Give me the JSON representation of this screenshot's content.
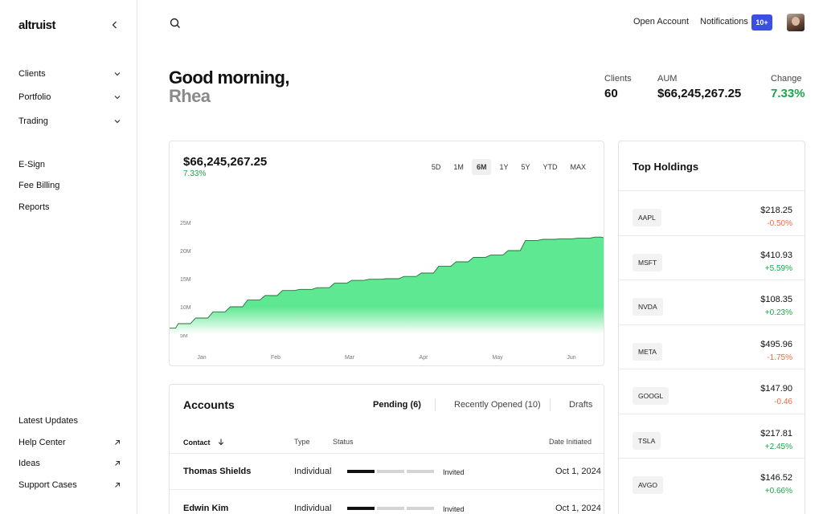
{
  "app": {
    "logo": "altruist"
  },
  "sidebar": {
    "primary": [
      {
        "label": "Clients"
      },
      {
        "label": "Portfolio"
      },
      {
        "label": "Trading"
      }
    ],
    "secondary": [
      {
        "label": "E-Sign"
      },
      {
        "label": "Fee Billing"
      },
      {
        "label": "Reports"
      }
    ],
    "footer": [
      {
        "label": "Latest Updates"
      },
      {
        "label": "Help Center"
      },
      {
        "label": "Ideas"
      },
      {
        "label": "Support Cases"
      }
    ]
  },
  "topbar": {
    "open_account": "Open Account",
    "notifications": "Notifications",
    "notifications_badge": "10+"
  },
  "greeting": {
    "line1": "Good morning,",
    "line2": "Rhea"
  },
  "stats": {
    "clients_label": "Clients",
    "clients_value": "60",
    "aum_label": "AUM",
    "aum_value": "$66,245,267.25",
    "change_label": "Change",
    "change_value": "7.33%"
  },
  "chart_card": {
    "value": "$66,245,267.25",
    "change": "7.33%",
    "ranges": [
      "5D",
      "1M",
      "6M",
      "1Y",
      "5Y",
      "YTD",
      "MAX"
    ],
    "active_range": "6M"
  },
  "chart_data": {
    "type": "area",
    "title": "",
    "xlabel": "",
    "ylabel": "",
    "x_ticks": [
      "Jan",
      "Feb",
      "Mar",
      "Apr",
      "May",
      "Jun"
    ],
    "y_ticks": [
      "5M",
      "10M",
      "15M",
      "20M",
      "25M"
    ],
    "ylim": [
      3,
      28
    ],
    "xlim": [
      0,
      1
    ],
    "x": [
      0.0,
      0.02,
      0.06,
      0.1,
      0.14,
      0.18,
      0.22,
      0.26,
      0.3,
      0.34,
      0.38,
      0.42,
      0.46,
      0.5,
      0.54,
      0.58,
      0.62,
      0.66,
      0.7,
      0.74,
      0.78,
      0.82,
      0.86,
      0.9,
      0.94,
      0.98,
      1.0
    ],
    "values": [
      6.2,
      7.0,
      8.0,
      9.1,
      10.0,
      11.2,
      12.0,
      12.9,
      13.1,
      13.4,
      14.2,
      14.7,
      14.9,
      15.0,
      15.4,
      16.0,
      17.2,
      18.0,
      18.8,
      19.2,
      20.0,
      21.8,
      22.0,
      22.1,
      22.2,
      22.4,
      22.3
    ],
    "color": "#5fe892",
    "grid": false,
    "legend": "none"
  },
  "accounts": {
    "title": "Accounts",
    "tabs": [
      "Pending (6)",
      "Recently Opened (10)",
      "Drafts"
    ],
    "columns": {
      "contact": "Contact",
      "type": "Type",
      "status": "Status",
      "date": "Date Initiated"
    },
    "rows": [
      {
        "name": "Thomas Shields",
        "type": "Individual",
        "status": "Invited",
        "progress": 1,
        "date": "Oct 1, 2024"
      },
      {
        "name": "Edwin Kim",
        "type": "Individual",
        "status": "Invited",
        "progress": 1,
        "date": "Oct 1, 2024"
      }
    ]
  },
  "holdings": {
    "title": "Top Holdings",
    "items": [
      {
        "ticker": "AAPL",
        "price": "$218.25",
        "change": "-0.50%",
        "dir": "down"
      },
      {
        "ticker": "MSFT",
        "price": "$410.93",
        "change": "+5.59%",
        "dir": "up"
      },
      {
        "ticker": "NVDA",
        "price": "$108.35",
        "change": "+0.23%",
        "dir": "up"
      },
      {
        "ticker": "META",
        "price": "$495.96",
        "change": "-1.75%",
        "dir": "down"
      },
      {
        "ticker": "GOOGL",
        "price": "$147.90",
        "change": "-0.46",
        "dir": "down"
      },
      {
        "ticker": "TSLA",
        "price": "$217.81",
        "change": "+2.45%",
        "dir": "up"
      },
      {
        "ticker": "AVGO",
        "price": "$146.52",
        "change": "+0.66%",
        "dir": "up"
      }
    ]
  }
}
